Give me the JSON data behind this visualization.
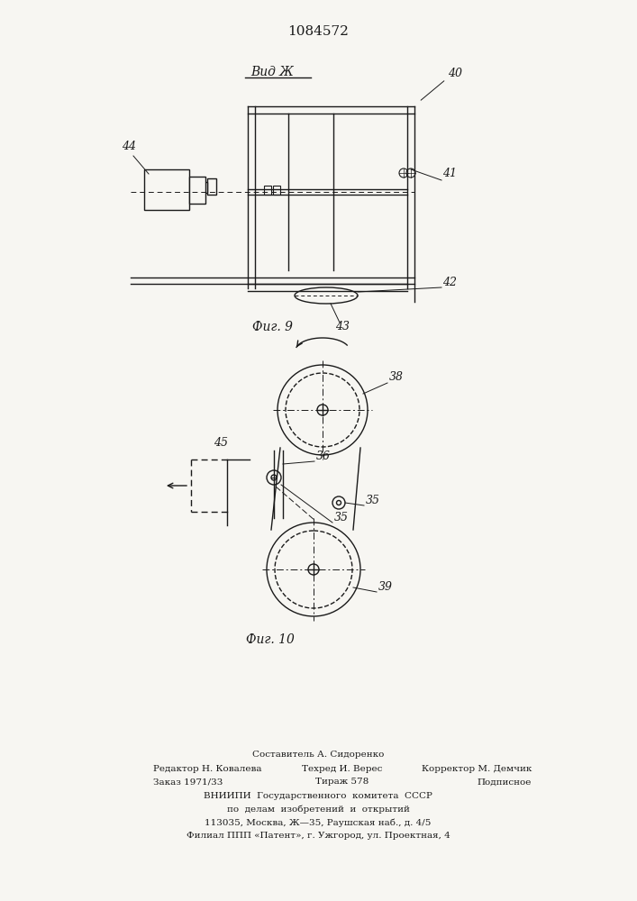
{
  "title": "1084572",
  "bg_color": "#f7f6f2",
  "line_color": "#1a1a1a",
  "fig9_label": "Вид Ж",
  "fig9_caption": "Фиг. 9",
  "fig10_caption": "Фиг. 10",
  "footer": [
    [
      "c",
      353,
      838,
      "Составитель А. Сидоренко",
      7.5
    ],
    [
      "l",
      170,
      853,
      "Редактор Н. Ковалева",
      7.5
    ],
    [
      "c",
      380,
      853,
      "Техред И. Верес",
      7.5
    ],
    [
      "r",
      590,
      853,
      "Корректор М. Демчик",
      7.5
    ],
    [
      "l",
      170,
      868,
      "Заказ 1971/33",
      7.5
    ],
    [
      "c",
      380,
      868,
      "Тираж 578",
      7.5
    ],
    [
      "r",
      590,
      868,
      "Подписное",
      7.5
    ],
    [
      "c",
      353,
      883,
      "ВНИИПИ  Государственного  комитета  СССР",
      7.5
    ],
    [
      "c",
      353,
      898,
      "по  делам  изобретений  и  открытий",
      7.5
    ],
    [
      "c",
      353,
      913,
      "113035, Москва, Ж—35, Раушская наб., д. 4/5",
      7.5
    ],
    [
      "c",
      353,
      928,
      "Филиал ППП «Патент», г. Ужгород, ул. Проектная, 4",
      7.5
    ]
  ]
}
